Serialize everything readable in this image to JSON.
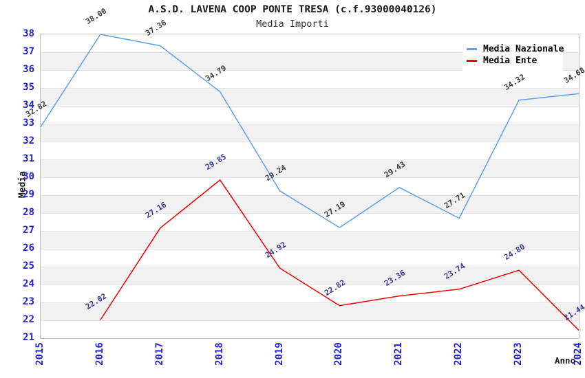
{
  "chart_data": {
    "type": "line",
    "title": "A.S.D. LAVENA COOP PONTE TRESA (c.f.93000040126)",
    "subtitle": "Media Importi",
    "xlabel": "Anno",
    "ylabel": "Media",
    "x_ticks": [
      "2015",
      "2016",
      "2017",
      "2018",
      "2019",
      "2020",
      "2021",
      "2022",
      "2023",
      "2024"
    ],
    "y_ticks": [
      21,
      22,
      23,
      24,
      25,
      26,
      27,
      28,
      29,
      30,
      31,
      32,
      33,
      34,
      35,
      36,
      37,
      38
    ],
    "ylim": [
      21,
      38
    ],
    "tick_color": "#2222cc",
    "band_colors": [
      "#ffffff",
      "#f1f1f1"
    ],
    "gridline_color": "#e2e2e2",
    "legend_position": "top-right",
    "series": [
      {
        "name": "Media Nazionale",
        "color": "#5d9fe8",
        "label_color": "#3a3a3a",
        "x": [
          "2015",
          "2016",
          "2017",
          "2018",
          "2019",
          "2020",
          "2021",
          "2022",
          "2023",
          "2024"
        ],
        "values": [
          32.82,
          38.0,
          37.36,
          34.79,
          29.24,
          27.19,
          29.43,
          27.71,
          34.32,
          34.68
        ]
      },
      {
        "name": "Media Ente",
        "color": "#ee0000",
        "label_color": "#333399",
        "x": [
          "2016",
          "2017",
          "2018",
          "2019",
          "2020",
          "2021",
          "2022",
          "2023",
          "2024"
        ],
        "values": [
          22.02,
          27.16,
          29.85,
          24.92,
          22.82,
          23.36,
          23.74,
          24.8,
          21.44
        ]
      }
    ]
  }
}
